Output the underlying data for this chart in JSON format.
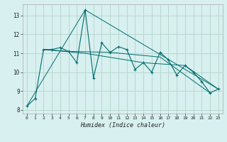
{
  "title": "",
  "xlabel": "Humidex (Indice chaleur)",
  "background_color": "#d8f0f0",
  "grid_color": "#b8d8d0",
  "line_color": "#006b6b",
  "xlim": [
    -0.5,
    23.5
  ],
  "ylim": [
    7.8,
    13.6
  ],
  "yticks": [
    8,
    9,
    10,
    11,
    12,
    13
  ],
  "xticks": [
    0,
    1,
    2,
    3,
    4,
    5,
    6,
    7,
    8,
    9,
    10,
    11,
    12,
    13,
    14,
    15,
    16,
    17,
    18,
    19,
    20,
    21,
    22,
    23
  ],
  "series": [
    [
      0,
      8.2
    ],
    [
      1,
      8.6
    ],
    [
      2,
      11.2
    ],
    [
      3,
      11.2
    ],
    [
      4,
      11.3
    ],
    [
      5,
      11.1
    ],
    [
      6,
      10.5
    ],
    [
      7,
      13.3
    ],
    [
      8,
      9.7
    ],
    [
      9,
      11.55
    ],
    [
      10,
      11.05
    ],
    [
      11,
      11.35
    ],
    [
      12,
      11.2
    ],
    [
      13,
      10.15
    ],
    [
      14,
      10.5
    ],
    [
      15,
      10.0
    ],
    [
      16,
      11.05
    ],
    [
      17,
      10.65
    ],
    [
      18,
      9.85
    ],
    [
      19,
      10.35
    ],
    [
      20,
      10.0
    ],
    [
      21,
      9.5
    ],
    [
      22,
      8.9
    ],
    [
      23,
      9.1
    ]
  ],
  "extra_series": [
    [
      [
        0,
        8.2
      ],
      [
        7,
        13.3
      ],
      [
        23,
        9.1
      ]
    ],
    [
      [
        2,
        11.2
      ],
      [
        7,
        11.0
      ],
      [
        14,
        10.5
      ],
      [
        19,
        10.35
      ],
      [
        23,
        9.1
      ]
    ],
    [
      [
        2,
        11.2
      ],
      [
        5,
        11.1
      ],
      [
        10,
        11.05
      ],
      [
        16,
        10.8
      ],
      [
        22,
        8.9
      ]
    ]
  ]
}
